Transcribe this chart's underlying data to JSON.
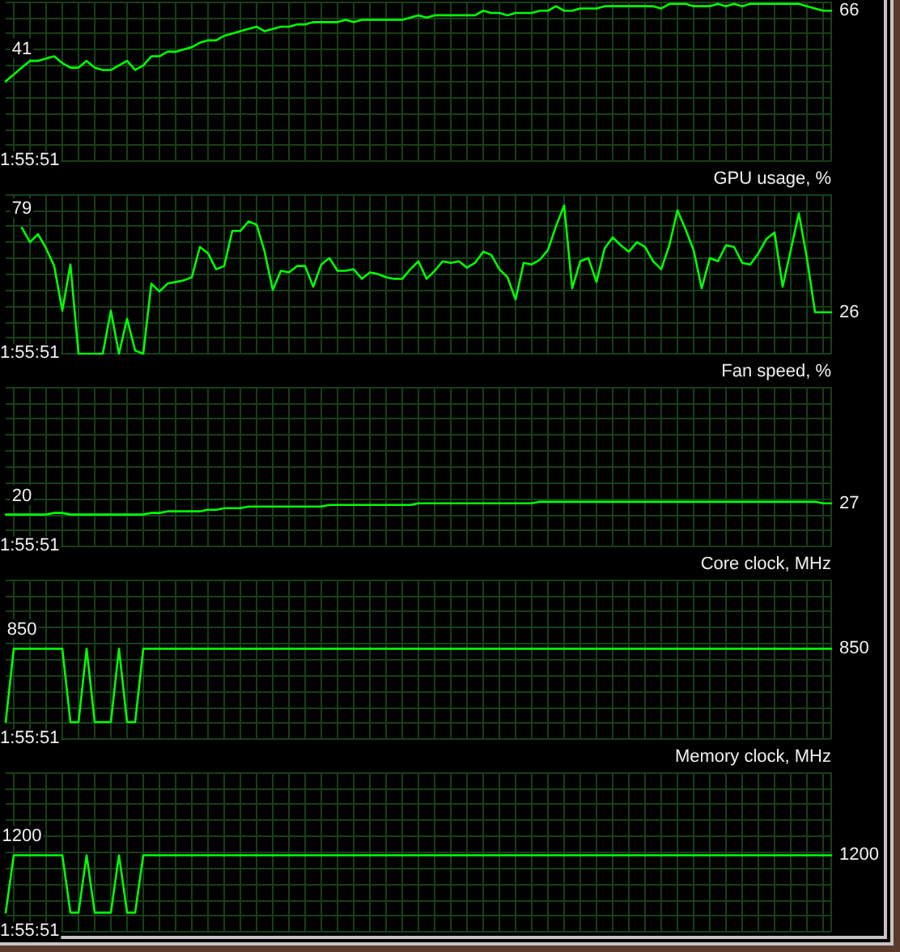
{
  "chart_data": [
    {
      "type": "line",
      "categories": [
        null,
        null,
        null,
        null,
        null,
        null,
        null,
        null,
        null,
        null,
        null,
        null,
        null,
        null,
        null,
        null,
        null,
        null,
        null,
        null,
        null,
        null,
        null,
        null,
        null,
        null,
        null,
        null,
        null,
        null,
        null,
        null,
        null,
        null,
        null,
        null,
        null,
        null,
        null,
        null,
        null,
        null,
        null,
        null,
        null,
        null,
        null,
        null,
        null,
        null,
        null,
        null,
        null,
        null,
        null,
        null,
        null,
        null,
        null,
        null,
        null,
        null,
        null,
        null,
        null,
        null,
        null,
        null,
        null,
        null,
        null,
        null,
        null,
        null,
        null,
        null,
        null,
        null,
        null,
        null,
        null,
        null,
        null,
        null,
        null,
        null,
        null,
        null,
        null,
        null,
        null,
        null,
        null,
        null,
        null,
        null,
        null,
        null,
        null,
        null,
        null,
        null,
        null
      ],
      "values": [
        35,
        38,
        41,
        44,
        44,
        45,
        46,
        43,
        41,
        41,
        44,
        41,
        40,
        40,
        42,
        44,
        40,
        42,
        46,
        46,
        48,
        48,
        49,
        50,
        52,
        53,
        53,
        55,
        56,
        57,
        58,
        59,
        57,
        58,
        59,
        59,
        60,
        60,
        61,
        61,
        61,
        61,
        62,
        61,
        62,
        62,
        62,
        62,
        62,
        62,
        63,
        64,
        63,
        64,
        64,
        64,
        64,
        64,
        64,
        66,
        65,
        65,
        64,
        65,
        65,
        65,
        66,
        66,
        68,
        66,
        66,
        67,
        67,
        67,
        68,
        68,
        68,
        68,
        68,
        68,
        68,
        67,
        69,
        69,
        69,
        68,
        68,
        68,
        69,
        68,
        69,
        68,
        69,
        69,
        69,
        69,
        69,
        69,
        69,
        68,
        67,
        66,
        66
      ],
      "color": "#00ff00",
      "value_labels": [
        null,
        null,
        "41",
        null,
        null,
        null,
        null,
        null,
        null,
        null,
        null,
        null,
        null,
        null,
        null,
        null,
        null,
        null,
        null,
        null,
        null,
        null,
        null,
        null,
        null,
        null,
        null,
        null,
        null,
        null,
        null,
        null,
        null,
        null,
        null,
        null,
        null,
        null,
        null,
        null,
        null,
        null,
        null,
        null,
        null,
        null,
        null,
        null,
        null,
        null,
        null,
        null,
        null,
        null,
        null,
        null,
        null,
        null,
        null,
        null,
        null,
        null,
        null,
        null,
        null,
        null,
        null,
        null,
        null,
        null,
        null,
        null,
        null,
        null,
        null,
        null,
        null,
        null,
        null,
        null,
        null,
        null,
        null,
        null,
        null,
        null,
        null,
        null,
        null,
        null,
        null,
        null,
        null,
        null,
        null,
        null,
        null,
        null,
        null,
        null,
        null,
        null,
        "66"
      ],
      "ylim": [
        0,
        70
      ],
      "yticks": [
        {
          "value": 0,
          "label": null
        },
        {
          "value": 7,
          "label": null
        },
        {
          "value": 14,
          "label": null
        },
        {
          "value": 21,
          "label": null
        },
        {
          "value": 28,
          "label": null
        },
        {
          "value": 35,
          "label": null
        },
        {
          "value": 42,
          "label": null
        },
        {
          "value": 49,
          "label": null
        },
        {
          "value": 56,
          "label": null
        },
        {
          "value": 63,
          "label": null
        },
        {
          "value": 70,
          "label": null
        }
      ],
      "grid": true,
      "tick_labels": false,
      "annotations": [
        "1:55:51"
      ]
    },
    {
      "type": "line",
      "title": "GPU usage, %",
      "categories": [
        null,
        null,
        null,
        null,
        null,
        null,
        null,
        null,
        null,
        null,
        null,
        null,
        null,
        null,
        null,
        null,
        null,
        null,
        null,
        null,
        null,
        null,
        null,
        null,
        null,
        null,
        null,
        null,
        null,
        null,
        null,
        null,
        null,
        null,
        null,
        null,
        null,
        null,
        null,
        null,
        null,
        null,
        null,
        null,
        null,
        null,
        null,
        null,
        null,
        null,
        null,
        null,
        null,
        null,
        null,
        null,
        null,
        null,
        null,
        null,
        null,
        null,
        null,
        null,
        null,
        null,
        null,
        null,
        null,
        null,
        null,
        null,
        null,
        null,
        null,
        null,
        null,
        null,
        null,
        null,
        null,
        null,
        null,
        null,
        null,
        null,
        null,
        null,
        null,
        null,
        null,
        null,
        null,
        null,
        null,
        null,
        null,
        null,
        null,
        null,
        null,
        null,
        null
      ],
      "values": [
        null,
        null,
        79,
        70,
        75,
        66,
        55,
        27,
        56,
        0,
        0,
        0,
        0,
        27,
        0,
        22,
        2,
        0,
        44,
        39,
        44,
        45,
        46,
        48,
        67,
        63,
        53,
        55,
        77,
        77,
        83,
        81,
        64,
        40,
        52,
        51,
        55,
        55,
        42,
        56,
        60,
        52,
        52,
        53,
        47,
        51,
        50,
        48,
        47,
        47,
        53,
        58,
        47,
        52,
        58,
        57,
        58,
        54,
        57,
        64,
        62,
        53,
        48,
        34,
        57,
        56,
        59,
        65,
        80,
        93,
        41,
        58,
        60,
        45,
        66,
        73,
        68,
        64,
        70,
        67,
        58,
        53,
        68,
        90,
        78,
        65,
        41,
        60,
        58,
        68,
        67,
        57,
        56,
        63,
        72,
        76,
        42,
        65,
        88,
        60,
        26,
        26,
        26
      ],
      "color": "#00ff00",
      "value_labels": [
        null,
        null,
        "79",
        null,
        null,
        null,
        null,
        null,
        null,
        null,
        null,
        null,
        null,
        null,
        null,
        null,
        null,
        null,
        null,
        null,
        null,
        null,
        null,
        null,
        null,
        null,
        null,
        null,
        null,
        null,
        null,
        null,
        null,
        null,
        null,
        null,
        null,
        null,
        null,
        null,
        null,
        null,
        null,
        null,
        null,
        null,
        null,
        null,
        null,
        null,
        null,
        null,
        null,
        null,
        null,
        null,
        null,
        null,
        null,
        null,
        null,
        null,
        null,
        null,
        null,
        null,
        null,
        null,
        null,
        null,
        null,
        null,
        null,
        null,
        null,
        null,
        null,
        null,
        null,
        null,
        null,
        null,
        null,
        null,
        null,
        null,
        null,
        null,
        null,
        null,
        null,
        null,
        null,
        null,
        null,
        null,
        null,
        null,
        null,
        null,
        null,
        null,
        "26"
      ],
      "ylim": [
        0,
        100
      ],
      "yticks": [
        {
          "value": 0,
          "label": null
        },
        {
          "value": 10,
          "label": null
        },
        {
          "value": 20,
          "label": null
        },
        {
          "value": 30,
          "label": null
        },
        {
          "value": 40,
          "label": null
        },
        {
          "value": 50,
          "label": null
        },
        {
          "value": 60,
          "label": null
        },
        {
          "value": 70,
          "label": null
        },
        {
          "value": 80,
          "label": null
        },
        {
          "value": 90,
          "label": null
        },
        {
          "value": 100,
          "label": null
        }
      ],
      "grid": true,
      "tick_labels": false,
      "annotations": [
        "1:55:51"
      ]
    },
    {
      "type": "line",
      "title": "Fan speed, %",
      "categories": [
        null,
        null,
        null,
        null,
        null,
        null,
        null,
        null,
        null,
        null,
        null,
        null,
        null,
        null,
        null,
        null,
        null,
        null,
        null,
        null,
        null,
        null,
        null,
        null,
        null,
        null,
        null,
        null,
        null,
        null,
        null,
        null,
        null,
        null,
        null,
        null,
        null,
        null,
        null,
        null,
        null,
        null,
        null,
        null,
        null,
        null,
        null,
        null,
        null,
        null,
        null,
        null,
        null,
        null,
        null,
        null,
        null,
        null,
        null,
        null,
        null,
        null,
        null,
        null,
        null,
        null,
        null,
        null,
        null,
        null,
        null,
        null,
        null,
        null,
        null,
        null,
        null,
        null,
        null,
        null,
        null,
        null,
        null,
        null,
        null,
        null,
        null,
        null,
        null,
        null,
        null,
        null,
        null,
        null,
        null,
        null,
        null,
        null,
        null,
        null,
        null,
        null,
        null
      ],
      "values": [
        20,
        20,
        20,
        20,
        20,
        20,
        21,
        21,
        20,
        20,
        20,
        20,
        20,
        20,
        20,
        20,
        20,
        20,
        21,
        21,
        22,
        22,
        22,
        22,
        22,
        23,
        23,
        24,
        24,
        24,
        25,
        25,
        25,
        25,
        25,
        25,
        25,
        25,
        25,
        25,
        26,
        26,
        26,
        26,
        26,
        26,
        26,
        26,
        26,
        26,
        26,
        27,
        27,
        27,
        27,
        27,
        27,
        27,
        27,
        27,
        27,
        27,
        27,
        27,
        27,
        27,
        28,
        28,
        28,
        28,
        28,
        28,
        28,
        28,
        28,
        28,
        28,
        28,
        28,
        28,
        28,
        28,
        28,
        28,
        28,
        28,
        28,
        28,
        28,
        28,
        28,
        28,
        28,
        28,
        28,
        28,
        28,
        28,
        28,
        28,
        28,
        27,
        27
      ],
      "color": "#00ff00",
      "value_labels": [
        null,
        null,
        "20",
        null,
        null,
        null,
        null,
        null,
        null,
        null,
        null,
        null,
        null,
        null,
        null,
        null,
        null,
        null,
        null,
        null,
        null,
        null,
        null,
        null,
        null,
        null,
        null,
        null,
        null,
        null,
        null,
        null,
        null,
        null,
        null,
        null,
        null,
        null,
        null,
        null,
        null,
        null,
        null,
        null,
        null,
        null,
        null,
        null,
        null,
        null,
        null,
        null,
        null,
        null,
        null,
        null,
        null,
        null,
        null,
        null,
        null,
        null,
        null,
        null,
        null,
        null,
        null,
        null,
        null,
        null,
        null,
        null,
        null,
        null,
        null,
        null,
        null,
        null,
        null,
        null,
        null,
        null,
        null,
        null,
        null,
        null,
        null,
        null,
        null,
        null,
        null,
        null,
        null,
        null,
        null,
        null,
        null,
        null,
        null,
        null,
        null,
        null,
        "27"
      ],
      "ylim": [
        0,
        100
      ],
      "yticks": [
        {
          "value": 0,
          "label": null
        },
        {
          "value": 10,
          "label": null
        },
        {
          "value": 20,
          "label": null
        },
        {
          "value": 30,
          "label": null
        },
        {
          "value": 40,
          "label": null
        },
        {
          "value": 50,
          "label": null
        },
        {
          "value": 60,
          "label": null
        },
        {
          "value": 70,
          "label": null
        },
        {
          "value": 80,
          "label": null
        },
        {
          "value": 90,
          "label": null
        },
        {
          "value": 100,
          "label": null
        }
      ],
      "grid": true,
      "tick_labels": false,
      "annotations": [
        "1:55:51"
      ]
    },
    {
      "type": "line",
      "title": "Core clock, MHz",
      "categories": [
        null,
        null,
        null,
        null,
        null,
        null,
        null,
        null,
        null,
        null,
        null,
        null,
        null,
        null,
        null,
        null,
        null,
        null,
        null,
        null,
        null,
        null,
        null,
        null,
        null,
        null,
        null,
        null,
        null,
        null,
        null,
        null,
        null,
        null,
        null,
        null,
        null,
        null,
        null,
        null,
        null,
        null,
        null,
        null,
        null,
        null,
        null,
        null,
        null,
        null,
        null,
        null,
        null,
        null,
        null,
        null,
        null,
        null,
        null,
        null,
        null,
        null,
        null,
        null,
        null,
        null,
        null,
        null,
        null,
        null,
        null,
        null,
        null,
        null,
        null,
        null,
        null,
        null,
        null,
        null,
        null,
        null,
        null,
        null,
        null,
        null,
        null,
        null,
        null,
        null,
        null,
        null,
        null,
        null,
        null,
        null,
        null,
        null,
        null,
        null,
        null,
        null,
        null
      ],
      "values": [
        160,
        850,
        850,
        850,
        850,
        850,
        850,
        850,
        160,
        160,
        850,
        160,
        160,
        160,
        850,
        160,
        160,
        850,
        850,
        850,
        850,
        850,
        850,
        850,
        850,
        850,
        850,
        850,
        850,
        850,
        850,
        850,
        850,
        850,
        850,
        850,
        850,
        850,
        850,
        850,
        850,
        850,
        850,
        850,
        850,
        850,
        850,
        850,
        850,
        850,
        850,
        850,
        850,
        850,
        850,
        850,
        850,
        850,
        850,
        850,
        850,
        850,
        850,
        850,
        850,
        850,
        850,
        850,
        850,
        850,
        850,
        850,
        850,
        850,
        850,
        850,
        850,
        850,
        850,
        850,
        850,
        850,
        850,
        850,
        850,
        850,
        850,
        850,
        850,
        850,
        850,
        850,
        850,
        850,
        850,
        850,
        850,
        850,
        850,
        850,
        850,
        850,
        850
      ],
      "color": "#00ff00",
      "value_labels": [
        null,
        null,
        "850",
        null,
        null,
        null,
        null,
        null,
        null,
        null,
        null,
        null,
        null,
        null,
        null,
        null,
        null,
        null,
        null,
        null,
        null,
        null,
        null,
        null,
        null,
        null,
        null,
        null,
        null,
        null,
        null,
        null,
        null,
        null,
        null,
        null,
        null,
        null,
        null,
        null,
        null,
        null,
        null,
        null,
        null,
        null,
        null,
        null,
        null,
        null,
        null,
        null,
        null,
        null,
        null,
        null,
        null,
        null,
        null,
        null,
        null,
        null,
        null,
        null,
        null,
        null,
        null,
        null,
        null,
        null,
        null,
        null,
        null,
        null,
        null,
        null,
        null,
        null,
        null,
        null,
        null,
        null,
        null,
        null,
        null,
        null,
        null,
        null,
        null,
        null,
        null,
        null,
        null,
        null,
        null,
        null,
        null,
        null,
        null,
        null,
        null,
        null,
        "850"
      ],
      "ylim": [
        0,
        1500
      ],
      "yticks": [
        {
          "value": 0,
          "label": null
        },
        {
          "value": 150,
          "label": null
        },
        {
          "value": 300,
          "label": null
        },
        {
          "value": 450,
          "label": null
        },
        {
          "value": 600,
          "label": null
        },
        {
          "value": 750,
          "label": null
        },
        {
          "value": 900,
          "label": null
        },
        {
          "value": 1050,
          "label": null
        },
        {
          "value": 1200,
          "label": null
        },
        {
          "value": 1350,
          "label": null
        },
        {
          "value": 1500,
          "label": null
        }
      ],
      "grid": true,
      "tick_labels": false,
      "annotations": [
        "1:55:51"
      ]
    },
    {
      "type": "line",
      "title": "Memory clock, MHz",
      "categories": [
        null,
        null,
        null,
        null,
        null,
        null,
        null,
        null,
        null,
        null,
        null,
        null,
        null,
        null,
        null,
        null,
        null,
        null,
        null,
        null,
        null,
        null,
        null,
        null,
        null,
        null,
        null,
        null,
        null,
        null,
        null,
        null,
        null,
        null,
        null,
        null,
        null,
        null,
        null,
        null,
        null,
        null,
        null,
        null,
        null,
        null,
        null,
        null,
        null,
        null,
        null,
        null,
        null,
        null,
        null,
        null,
        null,
        null,
        null,
        null,
        null,
        null,
        null,
        null,
        null,
        null,
        null,
        null,
        null,
        null,
        null,
        null,
        null,
        null,
        null,
        null,
        null,
        null,
        null,
        null,
        null,
        null,
        null,
        null,
        null,
        null,
        null,
        null,
        null,
        null,
        null,
        null,
        null,
        null,
        null,
        null,
        null,
        null,
        null,
        null,
        null,
        null,
        null
      ],
      "values": [
        300,
        1200,
        1200,
        1200,
        1200,
        1200,
        1200,
        1200,
        300,
        300,
        1200,
        300,
        300,
        300,
        1200,
        300,
        300,
        1200,
        1200,
        1200,
        1200,
        1200,
        1200,
        1200,
        1200,
        1200,
        1200,
        1200,
        1200,
        1200,
        1200,
        1200,
        1200,
        1200,
        1200,
        1200,
        1200,
        1200,
        1200,
        1200,
        1200,
        1200,
        1200,
        1200,
        1200,
        1200,
        1200,
        1200,
        1200,
        1200,
        1200,
        1200,
        1200,
        1200,
        1200,
        1200,
        1200,
        1200,
        1200,
        1200,
        1200,
        1200,
        1200,
        1200,
        1200,
        1200,
        1200,
        1200,
        1200,
        1200,
        1200,
        1200,
        1200,
        1200,
        1200,
        1200,
        1200,
        1200,
        1200,
        1200,
        1200,
        1200,
        1200,
        1200,
        1200,
        1200,
        1200,
        1200,
        1200,
        1200,
        1200,
        1200,
        1200,
        1200,
        1200,
        1200,
        1200,
        1200,
        1200,
        1200,
        1200,
        1200,
        1200
      ],
      "color": "#00ff00",
      "value_labels": [
        null,
        null,
        "1200",
        null,
        null,
        null,
        null,
        null,
        null,
        null,
        null,
        null,
        null,
        null,
        null,
        null,
        null,
        null,
        null,
        null,
        null,
        null,
        null,
        null,
        null,
        null,
        null,
        null,
        null,
        null,
        null,
        null,
        null,
        null,
        null,
        null,
        null,
        null,
        null,
        null,
        null,
        null,
        null,
        null,
        null,
        null,
        null,
        null,
        null,
        null,
        null,
        null,
        null,
        null,
        null,
        null,
        null,
        null,
        null,
        null,
        null,
        null,
        null,
        null,
        null,
        null,
        null,
        null,
        null,
        null,
        null,
        null,
        null,
        null,
        null,
        null,
        null,
        null,
        null,
        null,
        null,
        null,
        null,
        null,
        null,
        null,
        null,
        null,
        null,
        null,
        null,
        null,
        null,
        null,
        null,
        null,
        null,
        null,
        null,
        null,
        null,
        null,
        "1200"
      ],
      "ylim": [
        0,
        2500
      ],
      "yticks": [
        {
          "value": 0,
          "label": null
        },
        {
          "value": 250,
          "label": null
        },
        {
          "value": 500,
          "label": null
        },
        {
          "value": 750,
          "label": null
        },
        {
          "value": 1000,
          "label": null
        },
        {
          "value": 1250,
          "label": null
        },
        {
          "value": 1500,
          "label": null
        },
        {
          "value": 1750,
          "label": null
        },
        {
          "value": 2000,
          "label": null
        },
        {
          "value": 2250,
          "label": null
        },
        {
          "value": 2500,
          "label": null
        }
      ],
      "grid": true,
      "tick_labels": false,
      "annotations": [
        "1:55:51"
      ]
    }
  ]
}
